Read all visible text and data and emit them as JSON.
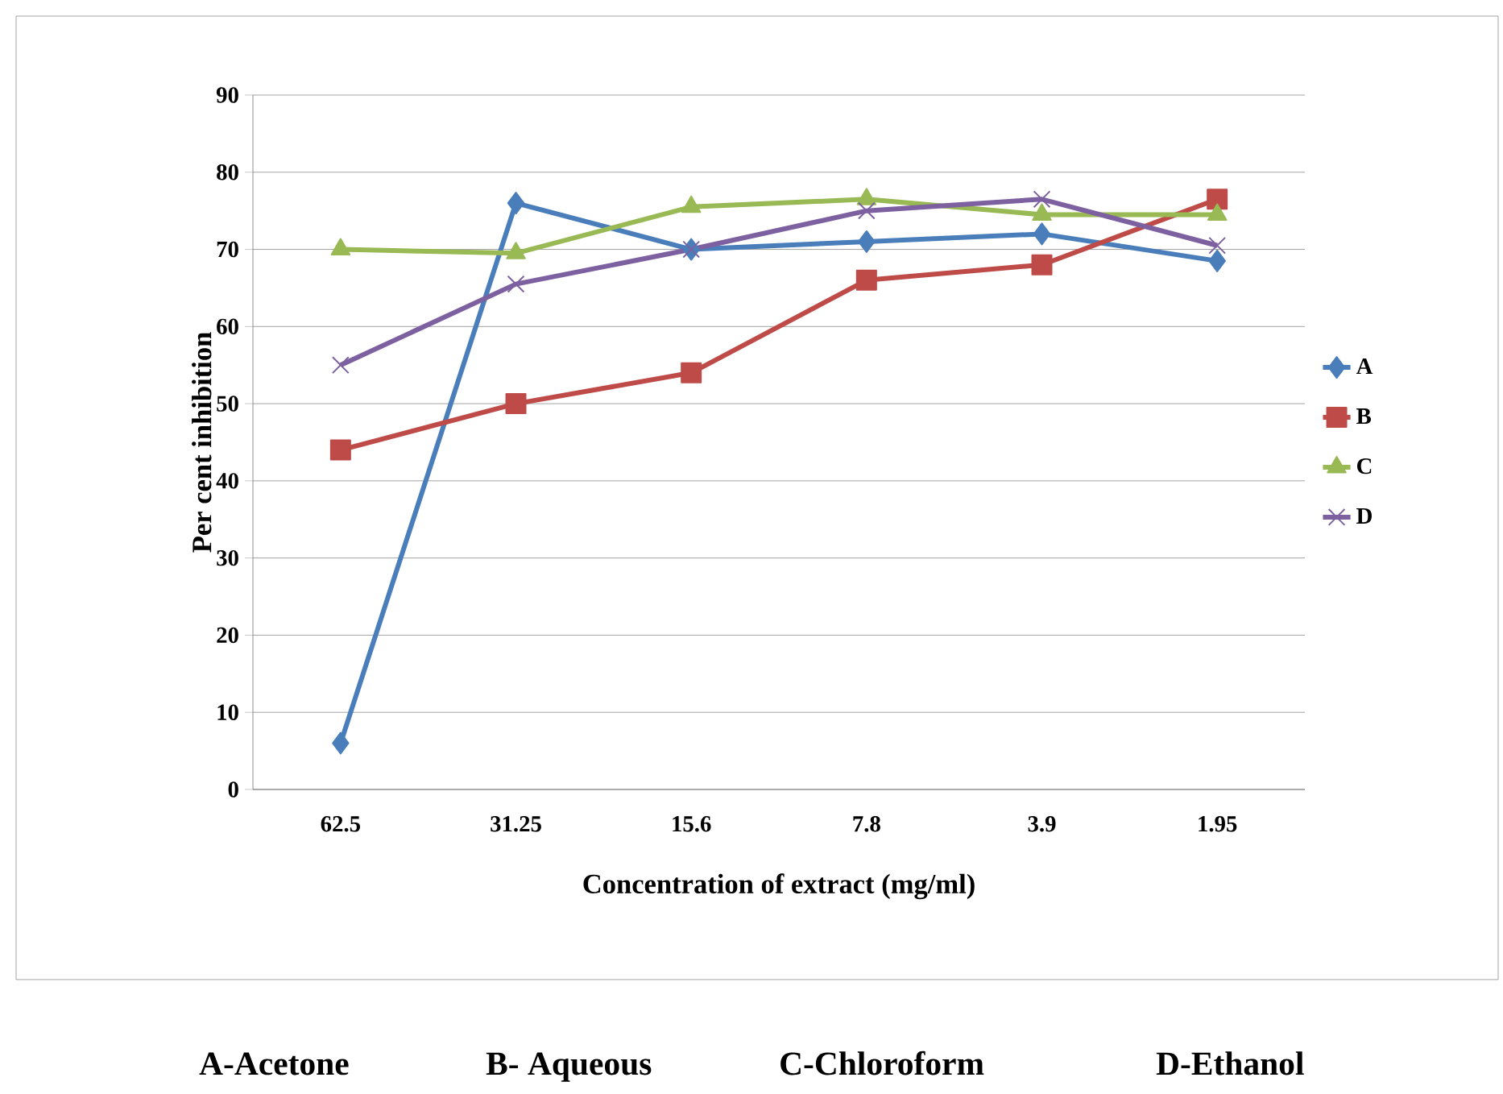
{
  "chart_data": {
    "type": "line",
    "xlabel": "Concentration of extract (mg/ml)",
    "ylabel": "Per cent inhibition",
    "categories": [
      "62.5",
      "31.25",
      "15.6",
      "7.8",
      "3.9",
      "1.95"
    ],
    "series": [
      {
        "name": "A",
        "color": "#4a7ebb",
        "marker": "diamond",
        "values": [
          6,
          76,
          70,
          71,
          72,
          68.5
        ]
      },
      {
        "name": "B",
        "color": "#be4b48",
        "marker": "square",
        "values": [
          44,
          50,
          54,
          66,
          68,
          76.5
        ]
      },
      {
        "name": "C",
        "color": "#98b954",
        "marker": "triangle",
        "values": [
          70,
          69.5,
          75.5,
          76.5,
          74.5,
          74.5
        ]
      },
      {
        "name": "D",
        "color": "#7d60a0",
        "marker": "cross",
        "values": [
          55,
          65.5,
          70,
          75,
          76.5,
          70.5
        ]
      }
    ],
    "ylim": [
      0,
      90
    ],
    "yticks": [
      0,
      10,
      20,
      30,
      40,
      50,
      60,
      70,
      80,
      90
    ],
    "grid": "y",
    "legend": "right",
    "annotations": [
      "A-Acetone",
      "B- Aqueous",
      "C-Chloroform",
      "D-Ethanol"
    ]
  }
}
